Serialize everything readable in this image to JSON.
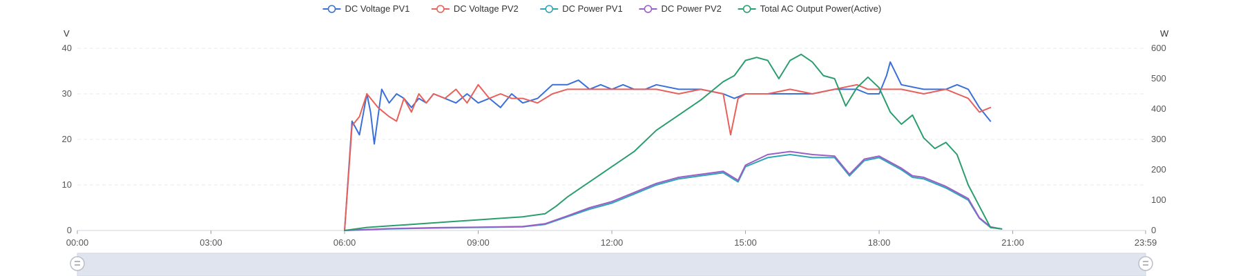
{
  "chart_data": {
    "type": "line",
    "legend_position": "top-center",
    "grid": "horizontal dashed",
    "x_ticks": [
      "00:00",
      "03:00",
      "06:00",
      "09:00",
      "12:00",
      "15:00",
      "18:00",
      "21:00",
      "23:59"
    ],
    "x_range": [
      "00:00",
      "23:59"
    ],
    "left_axis": {
      "unit": "V",
      "range": [
        0,
        40
      ],
      "ticks": [
        "0",
        "10",
        "20",
        "30",
        "40"
      ]
    },
    "right_axis": {
      "unit": "W",
      "range": [
        0,
        600
      ],
      "ticks": [
        "0",
        "100",
        "200",
        "300",
        "400",
        "500",
        "600"
      ]
    },
    "series": [
      {
        "name": "DC Voltage PV1",
        "axis": "left",
        "color": "#3b6fd8",
        "x": [
          "06:00",
          "06:10",
          "06:20",
          "06:30",
          "06:35",
          "06:40",
          "06:50",
          "07:00",
          "07:10",
          "07:20",
          "07:30",
          "07:40",
          "07:50",
          "08:00",
          "08:15",
          "08:30",
          "08:45",
          "09:00",
          "09:15",
          "09:30",
          "09:45",
          "10:00",
          "10:20",
          "10:40",
          "11:00",
          "11:15",
          "11:30",
          "11:45",
          "12:00",
          "12:15",
          "12:30",
          "12:45",
          "13:00",
          "13:30",
          "14:00",
          "14:30",
          "14:45",
          "15:00",
          "15:30",
          "16:00",
          "16:30",
          "17:00",
          "17:30",
          "17:45",
          "18:00",
          "18:10",
          "18:15",
          "18:30",
          "19:00",
          "19:30",
          "19:45",
          "20:00",
          "20:15",
          "20:30"
        ],
        "values": [
          0,
          24,
          21,
          30,
          26,
          19,
          31,
          28,
          30,
          29,
          27,
          29,
          28,
          30,
          29,
          28,
          30,
          28,
          29,
          27,
          30,
          28,
          29,
          32,
          32,
          33,
          31,
          32,
          31,
          32,
          31,
          31,
          32,
          31,
          31,
          30,
          29,
          30,
          30,
          30,
          30,
          31,
          31,
          30,
          30,
          34,
          37,
          32,
          31,
          31,
          32,
          31,
          27,
          24
        ]
      },
      {
        "name": "DC Voltage PV2",
        "axis": "left",
        "color": "#e8605a",
        "x": [
          "06:00",
          "06:10",
          "06:20",
          "06:30",
          "06:45",
          "07:00",
          "07:10",
          "07:20",
          "07:30",
          "07:40",
          "07:50",
          "08:00",
          "08:15",
          "08:30",
          "08:45",
          "09:00",
          "09:15",
          "09:30",
          "09:45",
          "10:00",
          "10:20",
          "10:40",
          "11:00",
          "11:30",
          "12:00",
          "12:30",
          "13:00",
          "13:30",
          "14:00",
          "14:30",
          "14:40",
          "14:50",
          "15:00",
          "15:30",
          "16:00",
          "16:30",
          "17:00",
          "17:30",
          "17:45",
          "18:00",
          "18:30",
          "19:00",
          "19:30",
          "20:00",
          "20:15",
          "20:30"
        ],
        "values": [
          0,
          23,
          25,
          30,
          27,
          25,
          24,
          29,
          26,
          30,
          28,
          30,
          29,
          31,
          28,
          32,
          29,
          30,
          29,
          29,
          28,
          30,
          31,
          31,
          31,
          31,
          31,
          30,
          31,
          30,
          21,
          29,
          30,
          30,
          31,
          30,
          31,
          32,
          31,
          31,
          31,
          30,
          31,
          29,
          26,
          27
        ]
      },
      {
        "name": "DC Power PV1",
        "axis": "right",
        "color": "#2fa4b5",
        "x": [
          "06:00",
          "07:00",
          "08:00",
          "09:00",
          "10:00",
          "10:30",
          "11:00",
          "11:30",
          "12:00",
          "12:30",
          "13:00",
          "13:30",
          "14:00",
          "14:30",
          "14:50",
          "15:00",
          "15:30",
          "16:00",
          "16:30",
          "17:00",
          "17:20",
          "17:40",
          "18:00",
          "18:30",
          "18:45",
          "19:00",
          "19:30",
          "20:00",
          "20:15",
          "20:30",
          "20:45"
        ],
        "values": [
          0,
          5,
          8,
          10,
          12,
          20,
          45,
          70,
          90,
          120,
          150,
          170,
          180,
          190,
          160,
          210,
          240,
          250,
          240,
          240,
          180,
          230,
          240,
          200,
          175,
          170,
          140,
          100,
          40,
          10,
          5
        ]
      },
      {
        "name": "DC Power PV2",
        "axis": "right",
        "color": "#9a5ec8",
        "x": [
          "06:00",
          "07:00",
          "08:00",
          "09:00",
          "10:00",
          "10:30",
          "11:00",
          "11:30",
          "12:00",
          "12:30",
          "13:00",
          "13:30",
          "14:00",
          "14:30",
          "14:50",
          "15:00",
          "15:30",
          "16:00",
          "16:30",
          "17:00",
          "17:20",
          "17:40",
          "18:00",
          "18:30",
          "18:45",
          "19:00",
          "19:30",
          "20:00",
          "20:15",
          "20:30",
          "20:45"
        ],
        "values": [
          0,
          6,
          9,
          11,
          13,
          22,
          48,
          75,
          95,
          125,
          155,
          175,
          185,
          195,
          165,
          215,
          250,
          260,
          250,
          245,
          185,
          235,
          245,
          205,
          180,
          175,
          145,
          105,
          42,
          12,
          5
        ]
      },
      {
        "name": "Total AC Output Power(Active)",
        "axis": "right",
        "color": "#2a9d6e",
        "x": [
          "06:00",
          "06:30",
          "07:00",
          "07:30",
          "08:00",
          "08:30",
          "09:00",
          "09:30",
          "10:00",
          "10:30",
          "10:45",
          "11:00",
          "11:30",
          "12:00",
          "12:30",
          "13:00",
          "13:30",
          "14:00",
          "14:30",
          "14:45",
          "15:00",
          "15:15",
          "15:30",
          "15:45",
          "16:00",
          "16:15",
          "16:30",
          "16:45",
          "17:00",
          "17:15",
          "17:30",
          "17:45",
          "18:00",
          "18:15",
          "18:30",
          "18:45",
          "19:00",
          "19:15",
          "19:30",
          "19:45",
          "20:00",
          "20:15",
          "20:30",
          "20:45"
        ],
        "values": [
          0,
          10,
          15,
          20,
          25,
          30,
          35,
          40,
          45,
          55,
          80,
          110,
          160,
          210,
          260,
          330,
          380,
          430,
          490,
          510,
          560,
          570,
          560,
          500,
          560,
          580,
          555,
          510,
          500,
          410,
          470,
          505,
          470,
          390,
          350,
          380,
          305,
          270,
          290,
          250,
          150,
          80,
          10,
          5
        ]
      }
    ]
  }
}
